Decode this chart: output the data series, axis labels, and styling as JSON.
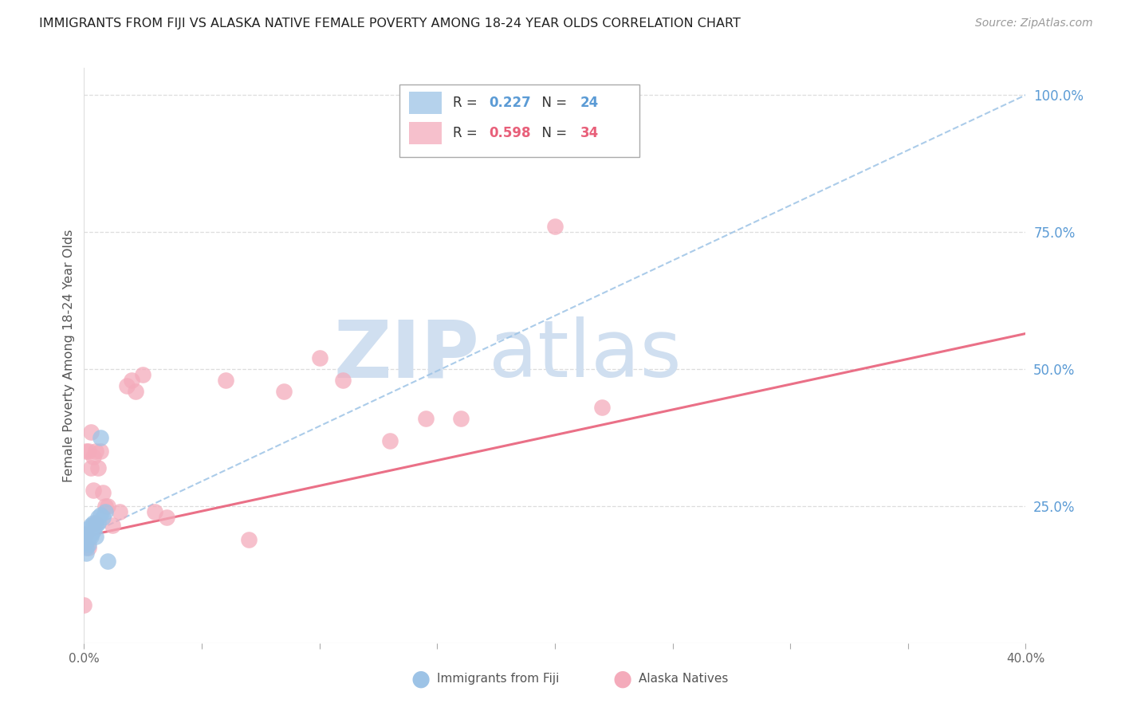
{
  "title": "IMMIGRANTS FROM FIJI VS ALASKA NATIVE FEMALE POVERTY AMONG 18-24 YEAR OLDS CORRELATION CHART",
  "source": "Source: ZipAtlas.com",
  "ylabel": "Female Poverty Among 18-24 Year Olds",
  "r_fiji": 0.227,
  "n_fiji": 24,
  "r_alaska": 0.598,
  "n_alaska": 34,
  "color_fiji": "#9DC3E6",
  "color_alaska": "#F4ABBB",
  "color_fiji_line": "#9DC3E6",
  "color_alaska_line": "#E8607A",
  "color_fiji_text": "#5B9BD5",
  "color_alaska_text": "#E8607A",
  "xlim": [
    0.0,
    0.4
  ],
  "ylim": [
    0.0,
    1.05
  ],
  "fiji_x": [
    0.0,
    0.001,
    0.001,
    0.001,
    0.002,
    0.002,
    0.002,
    0.002,
    0.003,
    0.003,
    0.003,
    0.003,
    0.004,
    0.004,
    0.004,
    0.005,
    0.005,
    0.006,
    0.006,
    0.007,
    0.007,
    0.008,
    0.009,
    0.01
  ],
  "fiji_y": [
    0.195,
    0.175,
    0.165,
    0.185,
    0.2,
    0.195,
    0.21,
    0.18,
    0.215,
    0.2,
    0.205,
    0.195,
    0.22,
    0.205,
    0.215,
    0.195,
    0.215,
    0.23,
    0.22,
    0.235,
    0.375,
    0.23,
    0.24,
    0.15
  ],
  "alaska_x": [
    0.0,
    0.001,
    0.001,
    0.002,
    0.002,
    0.003,
    0.003,
    0.004,
    0.004,
    0.005,
    0.005,
    0.006,
    0.007,
    0.008,
    0.009,
    0.01,
    0.012,
    0.015,
    0.018,
    0.02,
    0.022,
    0.025,
    0.03,
    0.035,
    0.06,
    0.07,
    0.085,
    0.1,
    0.11,
    0.13,
    0.145,
    0.16,
    0.2,
    0.22
  ],
  "alaska_y": [
    0.07,
    0.2,
    0.35,
    0.175,
    0.35,
    0.32,
    0.385,
    0.28,
    0.34,
    0.22,
    0.35,
    0.32,
    0.35,
    0.275,
    0.25,
    0.25,
    0.215,
    0.24,
    0.47,
    0.48,
    0.46,
    0.49,
    0.24,
    0.23,
    0.48,
    0.19,
    0.46,
    0.52,
    0.48,
    0.37,
    0.41,
    0.41,
    0.76,
    0.43
  ],
  "fiji_trendline_x": [
    0.0,
    0.4
  ],
  "fiji_trendline_y": [
    0.195,
    1.0
  ],
  "alaska_trendline_x": [
    0.0,
    0.4
  ],
  "alaska_trendline_y": [
    0.195,
    0.565
  ],
  "watermark_zip": "ZIP",
  "watermark_atlas": "atlas",
  "watermark_color": "#D0DFF0",
  "legend_labels": [
    "Immigrants from Fiji",
    "Alaska Natives"
  ]
}
